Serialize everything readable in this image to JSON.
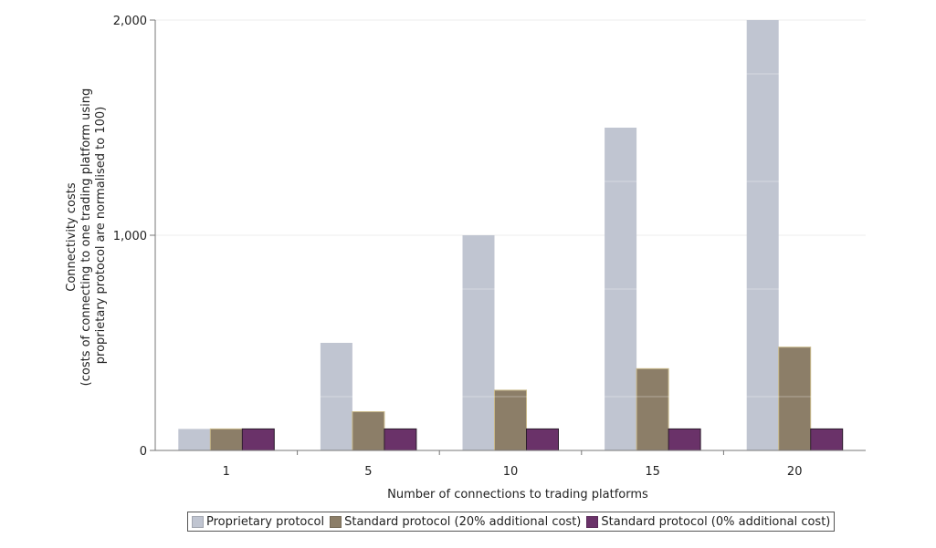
{
  "chart_data": {
    "type": "bar",
    "categories": [
      "1",
      "5",
      "10",
      "15",
      "20"
    ],
    "series": [
      {
        "name": "Proprietary protocol",
        "values": [
          100,
          500,
          1000,
          1500,
          2000
        ],
        "color": "#c0c5d1"
      },
      {
        "name": "Standard protocol (20% additional cost)",
        "values": [
          100,
          180,
          280,
          380,
          480
        ],
        "color": "#8c7e68"
      },
      {
        "name": "Standard protocol (0% additional cost)",
        "values": [
          100,
          100,
          100,
          100,
          100
        ],
        "color": "#6a3269"
      }
    ],
    "xlabel": "Number of connections to trading platforms",
    "ylabel_lines": [
      "Connectivity costs",
      "(costs of connecting to one trading platform using",
      "proprietary protocol are normalised to 100)"
    ],
    "yticks": [
      0,
      1000,
      2000
    ],
    "ytick_labels": [
      "0",
      "1,000",
      "2,000"
    ],
    "ylim": [
      0,
      2000
    ],
    "grid": true,
    "legend": "bottom"
  }
}
